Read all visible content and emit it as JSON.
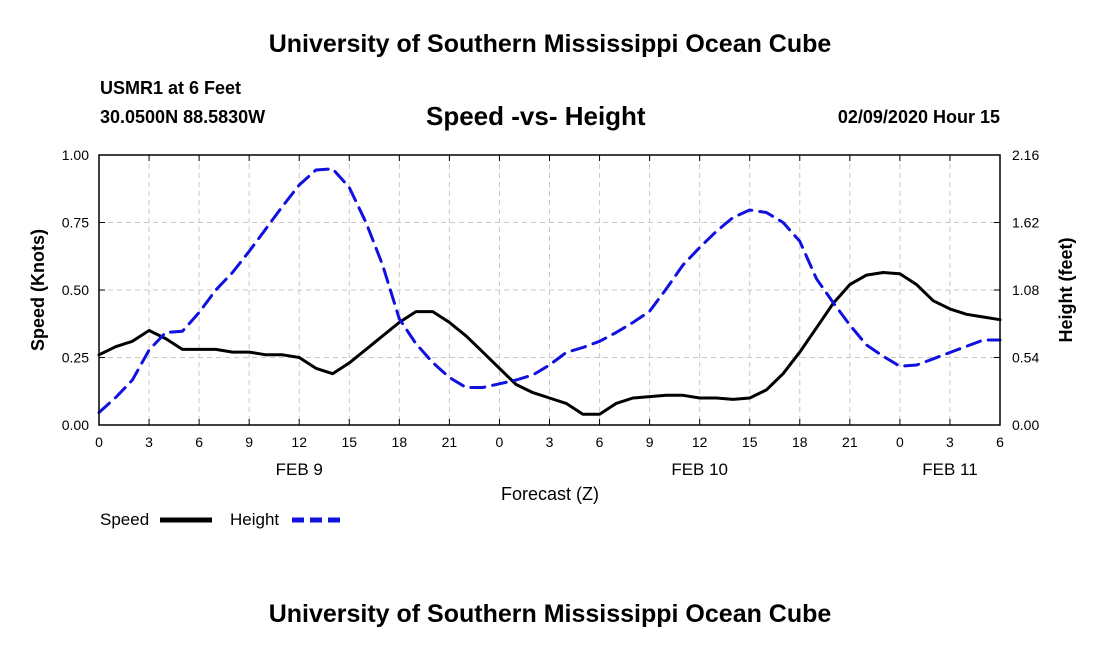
{
  "page": {
    "top_title": "University of Southern Mississippi Ocean Cube",
    "bottom_title": "University of Southern Mississippi Ocean Cube",
    "station": "USMR1 at 6 Feet",
    "coords": "30.0500N 88.5830W",
    "timestamp": "02/09/2020 Hour 15"
  },
  "chart_data": {
    "type": "line",
    "title": "Speed -vs- Height",
    "xlabel": "Forecast (Z)",
    "ylabel_left": "Speed (Knots)",
    "ylabel_right": "Height (feet)",
    "x_range": [
      0,
      54
    ],
    "ylim_left": [
      0,
      1
    ],
    "ylim_right": [
      0,
      2.16
    ],
    "grid": true,
    "x_tick_labels": [
      "0",
      "3",
      "6",
      "9",
      "12",
      "15",
      "18",
      "21",
      "0",
      "3",
      "6",
      "9",
      "12",
      "15",
      "18",
      "21",
      "0",
      "3",
      "6"
    ],
    "date_labels": [
      {
        "x": 12,
        "label": "FEB 9"
      },
      {
        "x": 36,
        "label": "FEB 10"
      },
      {
        "x": 51,
        "label": "FEB 11"
      }
    ],
    "y_ticks_left": [
      "0.00",
      "0.25",
      "0.50",
      "0.75",
      "1.00"
    ],
    "y_ticks_right": [
      "0.00",
      "0.54",
      "1.08",
      "1.62",
      "2.16"
    ],
    "legend": [
      {
        "name": "Speed",
        "color": "#000000",
        "dashed": false
      },
      {
        "name": "Height",
        "color": "#1010e0",
        "dashed": true
      }
    ],
    "series": [
      {
        "name": "Speed",
        "axis": "left",
        "color": "#000000",
        "dashed": false,
        "x": [
          0,
          1,
          2,
          3,
          4,
          5,
          6,
          7,
          8,
          9,
          10,
          11,
          12,
          13,
          14,
          15,
          16,
          17,
          18,
          19,
          20,
          21,
          22,
          23,
          24,
          25,
          26,
          27,
          28,
          29,
          30,
          31,
          32,
          33,
          34,
          35,
          36,
          37,
          38,
          39,
          40,
          41,
          42,
          43,
          44,
          45,
          46,
          47,
          48,
          49,
          50,
          51,
          52,
          53,
          54
        ],
        "values": [
          0.26,
          0.29,
          0.31,
          0.35,
          0.32,
          0.28,
          0.28,
          0.28,
          0.27,
          0.27,
          0.26,
          0.26,
          0.25,
          0.21,
          0.19,
          0.23,
          0.28,
          0.33,
          0.38,
          0.42,
          0.42,
          0.38,
          0.33,
          0.27,
          0.21,
          0.15,
          0.12,
          0.1,
          0.08,
          0.04,
          0.04,
          0.08,
          0.1,
          0.105,
          0.11,
          0.11,
          0.1,
          0.1,
          0.095,
          0.1,
          0.13,
          0.19,
          0.27,
          0.36,
          0.45,
          0.52,
          0.555,
          0.565,
          0.56,
          0.52,
          0.46,
          0.43,
          0.41,
          0.4,
          0.39
        ]
      },
      {
        "name": "Height",
        "axis": "right",
        "color": "#1010e0",
        "dashed": true,
        "x": [
          0,
          1,
          2,
          3,
          4,
          5,
          6,
          7,
          8,
          9,
          10,
          11,
          12,
          13,
          14,
          15,
          16,
          17,
          18,
          19,
          20,
          21,
          22,
          23,
          24,
          25,
          26,
          27,
          28,
          29,
          30,
          31,
          32,
          33,
          34,
          35,
          36,
          37,
          38,
          39,
          40,
          41,
          42,
          43,
          44,
          45,
          46,
          47,
          48,
          49,
          50,
          51,
          52,
          53,
          54
        ],
        "values": [
          0.1,
          0.22,
          0.36,
          0.6,
          0.74,
          0.75,
          0.9,
          1.08,
          1.22,
          1.39,
          1.57,
          1.75,
          1.92,
          2.04,
          2.05,
          1.9,
          1.62,
          1.28,
          0.85,
          0.65,
          0.5,
          0.38,
          0.3,
          0.3,
          0.33,
          0.36,
          0.4,
          0.48,
          0.58,
          0.62,
          0.67,
          0.74,
          0.82,
          0.91,
          1.09,
          1.28,
          1.42,
          1.55,
          1.66,
          1.72,
          1.7,
          1.62,
          1.47,
          1.17,
          0.98,
          0.8,
          0.64,
          0.55,
          0.47,
          0.48,
          0.53,
          0.58,
          0.63,
          0.68,
          0.68
        ]
      }
    ]
  }
}
